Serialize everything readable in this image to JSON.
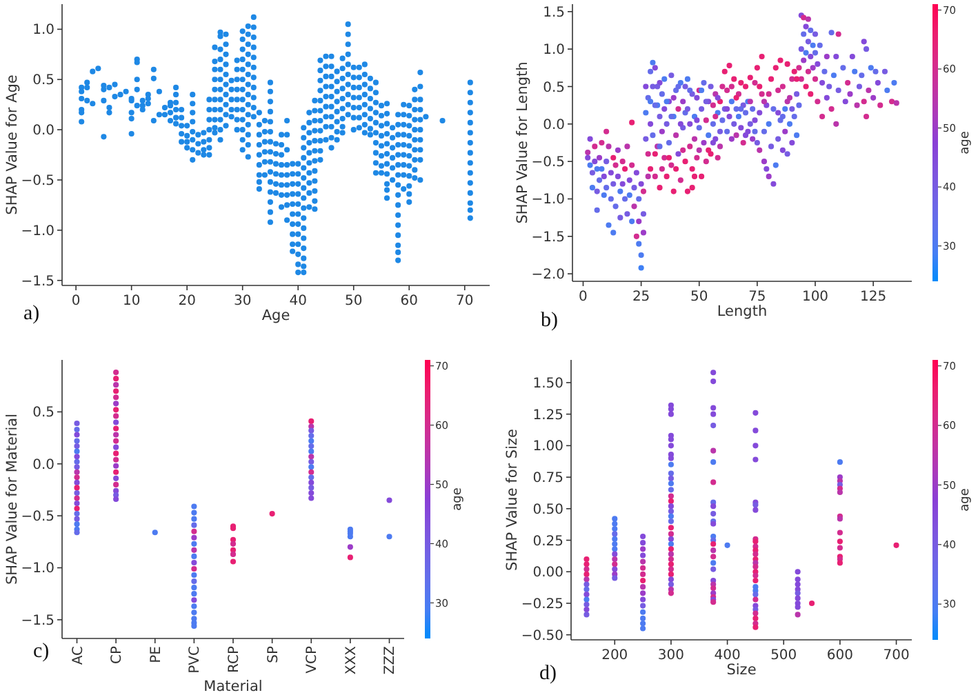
{
  "chart_data": [
    {
      "type": "scatter",
      "xlabel": "Age",
      "ylabel": "SHAP Value for Age",
      "annotations": [
        "a)"
      ],
      "marker": "circle",
      "color": "#1e88e5",
      "xlim": [
        -2.5,
        74.5
      ],
      "ylim": [
        -1.55,
        1.25
      ],
      "xticks": [
        0,
        10,
        20,
        30,
        40,
        50,
        60,
        70
      ],
      "yticks": [
        {
          "value": -1.5,
          "label": "−1.5"
        },
        {
          "value": -1,
          "label": "−1.0"
        },
        {
          "value": -0.5,
          "label": "−0.5"
        },
        {
          "value": 0,
          "label": "0.0"
        },
        {
          "value": 0.5,
          "label": "0.5"
        },
        {
          "value": 1,
          "label": "1.0"
        }
      ],
      "x": [
        1,
        1,
        1,
        1,
        1,
        1,
        2,
        2,
        2,
        3,
        3,
        4,
        5,
        5,
        5,
        5,
        6,
        6,
        6,
        7,
        7,
        8,
        9,
        10,
        10,
        10,
        10,
        10,
        11,
        11,
        11,
        11,
        11,
        12,
        12,
        12,
        13,
        13,
        13,
        14,
        14,
        14,
        15,
        15,
        16,
        16,
        17,
        17,
        17,
        17,
        18,
        18,
        18,
        18,
        18,
        18,
        19,
        19,
        19,
        19,
        19,
        20,
        20,
        20,
        20,
        21,
        21,
        21,
        21,
        21,
        21,
        21,
        21,
        22,
        22,
        22,
        23,
        23,
        23,
        23,
        24,
        24,
        24,
        24,
        24,
        24,
        24,
        25,
        25,
        25,
        25,
        25,
        25,
        25,
        25,
        25,
        25,
        26,
        26,
        26,
        26,
        26,
        26,
        26,
        26,
        26,
        26,
        26,
        26,
        27,
        27,
        27,
        27,
        27,
        27,
        27,
        27,
        27,
        27,
        28,
        28,
        28,
        28,
        28,
        29,
        29,
        29,
        29,
        29,
        29,
        29,
        29,
        30,
        30,
        30,
        30,
        30,
        30,
        30,
        30,
        30,
        30,
        30,
        30,
        30,
        31,
        31,
        31,
        31,
        31,
        31,
        31,
        31,
        31,
        31,
        31,
        31,
        31,
        31,
        32,
        32,
        32,
        32,
        32,
        32,
        32,
        32,
        32,
        32,
        32,
        33,
        33,
        33,
        33,
        33,
        33,
        33,
        33,
        33,
        34,
        34,
        34,
        34,
        34,
        34,
        35,
        35,
        35,
        35,
        35,
        35,
        35,
        35,
        35,
        35,
        35,
        35,
        35,
        35,
        35,
        36,
        36,
        36,
        36,
        36,
        36,
        37,
        37,
        37,
        37,
        37,
        37,
        37,
        37,
        38,
        38,
        38,
        38,
        38,
        38,
        38,
        38,
        38,
        39,
        39,
        39,
        39,
        39,
        39,
        39,
        39,
        39,
        39,
        40,
        40,
        40,
        40,
        40,
        40,
        40,
        40,
        40,
        40,
        40,
        40,
        41,
        41,
        41,
        41,
        41,
        41,
        41,
        41,
        41,
        41,
        41,
        41,
        41,
        41,
        41,
        41,
        42,
        42,
        42,
        42,
        42,
        42,
        42,
        42,
        42,
        42,
        43,
        43,
        43,
        43,
        43,
        43,
        43,
        43,
        43,
        43,
        43,
        43,
        44,
        44,
        44,
        44,
        44,
        44,
        44,
        44,
        44,
        44,
        44,
        45,
        45,
        45,
        45,
        45,
        45,
        45,
        45,
        45,
        46,
        46,
        46,
        46,
        46,
        46,
        46,
        46,
        46,
        46,
        47,
        47,
        47,
        47,
        47,
        47,
        47,
        47,
        48,
        48,
        48,
        48,
        48,
        48,
        48,
        48,
        48,
        49,
        49,
        49,
        49,
        49,
        49,
        49,
        49,
        49,
        49,
        50,
        50,
        50,
        50,
        50,
        50,
        50,
        51,
        51,
        51,
        51,
        51,
        51,
        51,
        52,
        52,
        52,
        52,
        52,
        52,
        52,
        52,
        53,
        53,
        53,
        53,
        53,
        53,
        53,
        54,
        54,
        54,
        54,
        54,
        54,
        54,
        54,
        54,
        54,
        55,
        55,
        55,
        55,
        55,
        55,
        55,
        55,
        56,
        56,
        56,
        56,
        56,
        56,
        56,
        56,
        56,
        56,
        56,
        57,
        57,
        57,
        57,
        57,
        57,
        58,
        58,
        58,
        58,
        58,
        58,
        58,
        58,
        58,
        58,
        58,
        58,
        58,
        58,
        58,
        58,
        59,
        59,
        59,
        59,
        59,
        59,
        59,
        59,
        59,
        60,
        60,
        60,
        60,
        60,
        60,
        60,
        60,
        60,
        60,
        60,
        61,
        61,
        61,
        61,
        61,
        61,
        61,
        61,
        61,
        61,
        62,
        62,
        62,
        62,
        62,
        62,
        62,
        62,
        62,
        62,
        63,
        66,
        71,
        71,
        71,
        71,
        71,
        71,
        71,
        71,
        71,
        71,
        71,
        71,
        71,
        71,
        71
      ],
      "values": [
        0.42,
        0.38,
        0.31,
        0.2,
        0.17,
        0.08,
        0.47,
        0.42,
        0.29,
        0.58,
        0.26,
        0.61,
        0.44,
        0.4,
        0.29,
        -0.07,
        0.42,
        0.22,
        0.17,
        0.45,
        0.33,
        0.35,
        0.38,
        0.31,
        0.29,
        0.17,
        0.11,
        -0.04,
        0.7,
        0.67,
        0.5,
        0.4,
        0.24,
        0.29,
        0.24,
        0.2,
        0.35,
        0.31,
        0.26,
        0.6,
        0.51,
        0.09,
        0.38,
        0.15,
        0.22,
        0.15,
        0.27,
        0.24,
        0.17,
        0.09,
        0.42,
        0.35,
        0.27,
        0.2,
        0.12,
        0.06,
        0.2,
        0.12,
        0.04,
        -0.04,
        -0.12,
        0.04,
        -0.06,
        -0.12,
        -0.18,
        0.35,
        0.26,
        0.17,
        0.08,
        -0.02,
        -0.1,
        -0.2,
        -0.3,
        -0.05,
        -0.14,
        -0.23,
        -0.03,
        -0.12,
        -0.2,
        -0.25,
        0.3,
        0.2,
        0.1,
        0,
        -0.1,
        -0.18,
        -0.25,
        0.82,
        0.68,
        0.6,
        0.5,
        0.4,
        0.3,
        0.2,
        0.1,
        0.02,
        -0.03,
        0.97,
        0.93,
        0.8,
        0.7,
        0.6,
        0.5,
        0.4,
        0.3,
        0.2,
        0.1,
        0,
        -0.1,
        0.95,
        0.85,
        0.75,
        0.65,
        0.55,
        0.45,
        0.35,
        0.25,
        0.15,
        0.04,
        0.49,
        0.4,
        0.3,
        0.2,
        0.13,
        0.69,
        0.6,
        0.5,
        0.4,
        0.3,
        0.2,
        0.1,
        0,
        0.98,
        0.9,
        0.8,
        0.7,
        0.6,
        0.5,
        0.4,
        0.3,
        0.2,
        0.1,
        0,
        -0.1,
        -0.2,
        1.03,
        0.95,
        0.85,
        0.75,
        0.65,
        0.55,
        0.45,
        0.35,
        0.25,
        0.15,
        0.05,
        -0.05,
        -0.15,
        -0.27,
        1.12,
        1.02,
        0.92,
        0.82,
        0.72,
        0.62,
        0.52,
        0.42,
        0.32,
        0.22,
        0.13,
        0.17,
        0.05,
        -0.05,
        -0.15,
        -0.25,
        -0.35,
        -0.45,
        -0.52,
        -0.59,
        0.09,
        -0.02,
        -0.12,
        -0.22,
        -0.32,
        -0.45,
        0.47,
        0.38,
        0.28,
        0.18,
        0.08,
        -0.02,
        -0.12,
        -0.22,
        -0.32,
        -0.42,
        -0.52,
        -0.62,
        -0.72,
        -0.82,
        -0.92,
        -0.14,
        -0.24,
        -0.34,
        -0.44,
        -0.54,
        -0.63,
        -0.05,
        -0.15,
        -0.25,
        -0.35,
        -0.45,
        -0.55,
        -0.65,
        -0.77,
        0.09,
        -0.05,
        -0.2,
        -0.35,
        -0.45,
        -0.55,
        -0.65,
        -0.75,
        -0.9,
        -0.34,
        -0.44,
        -0.54,
        -0.64,
        -0.74,
        -0.84,
        -0.94,
        -1.04,
        -1.14,
        -1.21,
        -0.34,
        -0.44,
        -0.54,
        -0.64,
        -0.74,
        -0.84,
        -0.94,
        -1.04,
        -1.14,
        -1.24,
        -1.34,
        -1.42,
        0.02,
        -0.08,
        -0.18,
        -0.28,
        -0.38,
        -0.48,
        -0.58,
        -0.68,
        -0.78,
        -0.88,
        -0.98,
        -1.08,
        -1.18,
        -1.28,
        -1.36,
        -1.42,
        0.17,
        0.07,
        -0.03,
        -0.13,
        -0.23,
        -0.33,
        -0.43,
        -0.53,
        -0.63,
        -0.77,
        0.29,
        0.19,
        0.09,
        -0.01,
        -0.11,
        -0.21,
        -0.31,
        -0.41,
        -0.51,
        -0.61,
        -0.71,
        -0.79,
        0.69,
        0.59,
        0.49,
        0.39,
        0.29,
        0.19,
        0.09,
        -0.01,
        -0.11,
        -0.21,
        -0.3,
        0.73,
        0.63,
        0.53,
        0.43,
        0.33,
        0.23,
        0.13,
        0.03,
        -0.1,
        0.73,
        0.63,
        0.53,
        0.43,
        0.33,
        0.23,
        0.13,
        0.03,
        -0.08,
        -0.18,
        0.58,
        0.48,
        0.38,
        0.28,
        0.18,
        0.08,
        -0.02,
        -0.1,
        0.71,
        0.61,
        0.51,
        0.41,
        0.31,
        0.21,
        0.11,
        0.03,
        -0.03,
        1.05,
        0.95,
        0.85,
        0.75,
        0.65,
        0.55,
        0.45,
        0.35,
        0.25,
        0.15,
        0.62,
        0.52,
        0.42,
        0.32,
        0.22,
        0.12,
        0,
        0.62,
        0.52,
        0.42,
        0.32,
        0.22,
        0.12,
        0.02,
        0.65,
        0.55,
        0.45,
        0.35,
        0.25,
        0.15,
        0.05,
        -0.03,
        0.51,
        0.41,
        0.31,
        0.21,
        0.11,
        0.01,
        -0.05,
        0.47,
        0.37,
        0.27,
        0.17,
        0.07,
        -0.03,
        -0.13,
        -0.23,
        -0.33,
        -0.43,
        0.24,
        0.14,
        0.04,
        -0.06,
        -0.16,
        -0.26,
        -0.36,
        -0.43,
        0.26,
        0.16,
        0.06,
        -0.04,
        -0.14,
        -0.24,
        -0.34,
        -0.44,
        -0.54,
        -0.6,
        -0.68,
        0.02,
        -0.08,
        -0.18,
        -0.28,
        -0.38,
        -0.5,
        0.15,
        0.05,
        -0.05,
        -0.15,
        -0.25,
        -0.35,
        -0.45,
        -0.55,
        -0.65,
        -0.75,
        -0.85,
        -0.95,
        -1.05,
        -1.15,
        -1.22,
        -1.3,
        0.25,
        0.15,
        0.05,
        -0.05,
        -0.15,
        -0.25,
        -0.35,
        -0.45,
        -0.59,
        0.24,
        0.14,
        0.04,
        -0.06,
        -0.16,
        -0.26,
        -0.36,
        -0.46,
        -0.56,
        -0.64,
        -0.72,
        0.4,
        0.3,
        0.2,
        0.1,
        0,
        -0.1,
        -0.2,
        -0.3,
        -0.4,
        -0.48,
        0.57,
        0.43,
        0.3,
        0.2,
        0.1,
        0,
        -0.1,
        -0.2,
        -0.3,
        -0.5,
        0.13,
        0.09,
        0.47,
        0.37,
        0.27,
        0.17,
        0.07,
        -0.03,
        -0.13,
        -0.23,
        -0.33,
        -0.43,
        -0.53,
        -0.63,
        -0.73,
        -0.8,
        -0.88
      ]
    },
    {
      "type": "scatter",
      "xlabel": "Length",
      "ylabel": "SHAP Value for Length",
      "clabel": "age",
      "annotations": [
        "b)"
      ],
      "marker": "circle",
      "xlim": [
        -4.6,
        141.6
      ],
      "ylim": [
        -2.1,
        1.6
      ],
      "xticks": [
        0,
        25,
        50,
        75,
        100,
        125
      ],
      "yticks": [
        {
          "value": -2,
          "label": "−2.0"
        },
        {
          "value": -1.5,
          "label": "−1.5"
        },
        {
          "value": -1,
          "label": "−1.0"
        },
        {
          "value": -0.5,
          "label": "−0.5"
        },
        {
          "value": 0,
          "label": "0.0"
        },
        {
          "value": 0.5,
          "label": "0.5"
        },
        {
          "value": 1,
          "label": "1.0"
        },
        {
          "value": 1.5,
          "label": "1.5"
        }
      ],
      "clim": [
        24,
        71
      ],
      "cticks": [
        30,
        40,
        50,
        60,
        70
      ],
      "x": [
        2,
        2,
        3,
        3,
        4,
        4,
        5,
        5,
        6,
        6,
        6,
        7,
        7,
        8,
        8,
        9,
        9,
        10,
        10,
        10,
        11,
        11,
        12,
        12,
        13,
        13,
        13,
        14,
        14,
        15,
        15,
        16,
        16,
        17,
        17,
        18,
        18,
        19,
        19,
        20,
        20,
        21,
        21,
        21,
        22,
        22,
        23,
        23,
        24,
        24,
        24,
        25,
        25,
        25,
        26,
        26,
        26,
        27,
        27,
        28,
        28,
        29,
        29,
        30,
        30,
        31,
        31,
        32,
        32,
        33,
        33,
        34,
        34,
        35,
        35,
        36,
        36,
        37,
        37,
        38,
        38,
        39,
        39,
        40,
        40,
        41,
        41,
        42,
        42,
        43,
        43,
        44,
        44,
        45,
        45,
        46,
        46,
        47,
        47,
        48,
        48,
        49,
        49,
        50,
        50,
        51,
        51,
        52,
        52,
        53,
        53,
        54,
        54,
        55,
        55,
        56,
        56,
        57,
        57,
        58,
        58,
        59,
        59,
        60,
        60,
        30,
        31,
        29,
        33,
        36,
        44,
        28,
        47,
        61,
        61,
        62,
        62,
        63,
        63,
        64,
        64,
        65,
        65,
        66,
        66,
        67,
        67,
        68,
        68,
        69,
        69,
        70,
        70,
        71,
        71,
        72,
        72,
        73,
        73,
        74,
        74,
        75,
        75,
        76,
        76,
        77,
        77,
        78,
        78,
        79,
        79,
        80,
        80,
        81,
        81,
        82,
        82,
        83,
        83,
        84,
        84,
        85,
        85,
        86,
        86,
        87,
        87,
        88,
        88,
        89,
        89,
        90,
        90,
        91,
        91,
        92,
        92,
        93,
        93,
        94,
        94,
        94,
        95,
        95,
        95,
        96,
        96,
        96,
        97,
        97,
        97,
        98,
        98,
        98,
        99,
        99,
        100,
        100,
        100,
        101,
        101,
        102,
        103,
        103,
        104,
        105,
        105,
        106,
        107,
        107,
        108,
        109,
        109,
        110,
        110,
        112,
        113,
        114,
        115,
        116,
        117,
        118,
        119,
        120,
        121,
        121,
        122,
        122,
        123,
        124,
        125,
        126,
        127,
        128,
        130,
        131,
        133,
        134,
        135,
        27,
        29,
        31,
        32,
        33,
        34,
        35,
        37,
        38,
        39,
        40,
        41,
        42,
        43,
        45,
        46,
        48,
        49,
        50,
        51,
        53,
        54,
        56,
        57,
        58,
        59,
        62,
        64,
        66,
        68,
        70,
        72,
        74,
        76,
        78,
        80,
        84,
        86,
        88,
        90,
        92
      ],
      "values": [
        -0.38,
        -0.45,
        -0.2,
        -0.55,
        -0.85,
        -0.65,
        -0.3,
        -0.5,
        -0.6,
        -0.9,
        -1.15,
        -0.75,
        -0.45,
        -0.25,
        -0.6,
        -0.7,
        -0.95,
        -0.1,
        -0.5,
        -0.85,
        -1.35,
        -0.3,
        -0.65,
        -1,
        -0.45,
        -0.8,
        -1.45,
        -0.55,
        -1.1,
        -0.7,
        -0.35,
        -0.9,
        -1.25,
        -0.5,
        -0.8,
        -1,
        -0.6,
        -0.3,
        -1.2,
        -0.75,
        -0.95,
        0.02,
        -0.55,
        -1.3,
        -0.85,
        -1.1,
        -0.65,
        -1.5,
        -1,
        -1.6,
        -1.3,
        -1.75,
        -1.92,
        -0.8,
        -1.2,
        -0.9,
        -1.45,
        0.15,
        -0.2,
        0.35,
        -0.4,
        0,
        -0.6,
        0.82,
        -0.15,
        0.75,
        -0.7,
        0.25,
        -0.3,
        0.1,
        -0.85,
        0.4,
        -0.1,
        -0.45,
        0.6,
        0,
        -0.7,
        0.3,
        -0.25,
        0.65,
        -0.55,
        0.1,
        -0.9,
        0.45,
        -0.15,
        -0.4,
        0.2,
        0.55,
        -0.75,
        -0.05,
        0.3,
        -0.5,
        0.15,
        0.6,
        -0.9,
        0,
        -0.3,
        0.4,
        -0.6,
        0.1,
        -0.2,
        0.35,
        -0.45,
        -0.05,
        0.45,
        0.2,
        -0.7,
        -0.25,
        0.55,
        0.05,
        -0.5,
        0.3,
        -0.15,
        0.5,
        -0.4,
        0,
        0.25,
        -0.2,
        0.4,
        0.15,
        -0.45,
        -0.1,
        0.3,
        0.5,
        0.05,
        0.5,
        0.25,
        0.7,
        0.55,
        0.3,
        0.5,
        -0.7,
        -0.85,
        0.7,
        0.2,
        -0.1,
        0.45,
        0.78,
        0.1,
        0.3,
        -0.2,
        0.6,
        0,
        0.2,
        -0.15,
        0.4,
        0.1,
        -0.05,
        0.55,
        0.25,
        -0.25,
        0.15,
        0.5,
        -0.1,
        0.3,
        0.62,
        0,
        -0.2,
        0.2,
        0.55,
        0.05,
        0.75,
        -0.25,
        0.15,
        -0.35,
        0.9,
        0.4,
        -0.1,
        -0.5,
        0.25,
        -0.6,
        0,
        -0.7,
        0.6,
        -0.3,
        -0.8,
        0.2,
        -0.55,
        0.75,
        0.45,
        -0.2,
        0.05,
        0.85,
        -0.35,
        0.5,
        0.2,
        -0.1,
        0.8,
        -0.4,
        0.35,
        0,
        0.6,
        -0.25,
        0.1,
        0.7,
        0.4,
        -0.15,
        0.75,
        0.25,
        1.45,
        1,
        0.6,
        1.42,
        1.2,
        0.85,
        1.3,
        0.5,
        0.95,
        1.4,
        1.1,
        0.7,
        1.25,
        0.9,
        0.4,
        1.05,
        0.75,
        1.2,
        0.6,
        0.95,
        0.3,
        0.8,
        1.05,
        0.55,
        0.1,
        0.7,
        0.35,
        0.9,
        0.5,
        1.22,
        0.2,
        0.65,
        0,
        0.9,
        1.2,
        0.45,
        0.75,
        0.3,
        0.55,
        0.4,
        0.9,
        0.7,
        0.25,
        0.5,
        0.65,
        1.1,
        0.3,
        1,
        0.1,
        0.45,
        0.75,
        0.35,
        0.7,
        0.55,
        0.25,
        0.7,
        0.45,
        0.3,
        0.55,
        0.28,
        0.5,
        0.3,
        -0.4,
        0.5,
        -0.3,
        -0.6,
        0.2,
        -0.45,
        0.1,
        0.35,
        -0.6,
        0.5,
        0,
        -0.35,
        0.2,
        0.45,
        -0.7,
        0.05,
        -0.35,
        0.45,
        0.3,
        -0.35,
        -0.25,
        0.1,
        0.35,
        -0.3,
        0.2,
        0.5,
        0.35,
        0.2,
        -0.15,
        0.3,
        -0.1,
        0.5,
        0.3,
        0.4,
        0.15,
        0.1,
        0.3,
        0.2,
        0.6
      ],
      "cvalues": [
        55,
        45,
        45,
        30,
        30,
        40,
        60,
        45,
        30,
        40,
        35,
        35,
        50,
        60,
        30,
        45,
        30,
        60,
        40,
        35,
        30,
        55,
        45,
        35,
        65,
        40,
        30,
        60,
        35,
        45,
        50,
        30,
        40,
        60,
        45,
        35,
        65,
        55,
        40,
        45,
        30,
        65,
        60,
        30,
        40,
        55,
        45,
        60,
        35,
        30,
        50,
        30,
        28,
        45,
        40,
        60,
        50,
        30,
        40,
        35,
        60,
        45,
        65,
        30,
        35,
        45,
        60,
        30,
        55,
        40,
        65,
        35,
        50,
        60,
        30,
        40,
        65,
        45,
        35,
        40,
        60,
        30,
        65,
        35,
        55,
        45,
        60,
        30,
        60,
        40,
        50,
        65,
        35,
        30,
        65,
        45,
        60,
        40,
        65,
        30,
        55,
        45,
        60,
        35,
        60,
        40,
        65,
        50,
        35,
        60,
        60,
        45,
        30,
        40,
        65,
        35,
        60,
        45,
        55,
        30,
        60,
        40,
        65,
        60,
        35,
        40,
        35,
        35,
        45,
        30,
        40,
        55,
        65,
        65,
        40,
        35,
        60,
        65,
        45,
        30,
        50,
        65,
        40,
        35,
        55,
        60,
        30,
        45,
        65,
        40,
        60,
        35,
        65,
        45,
        30,
        65,
        40,
        50,
        35,
        60,
        45,
        65,
        40,
        45,
        55,
        65,
        60,
        35,
        50,
        45,
        45,
        30,
        50,
        65,
        40,
        45,
        35,
        30,
        65,
        60,
        40,
        35,
        65,
        45,
        60,
        30,
        50,
        65,
        40,
        55,
        30,
        60,
        45,
        35,
        65,
        40,
        30,
        60,
        35,
        45,
        40,
        60,
        60,
        35,
        50,
        45,
        65,
        30,
        55,
        40,
        60,
        35,
        45,
        65,
        30,
        50,
        40,
        60,
        35,
        60,
        45,
        35,
        45,
        60,
        35,
        45,
        50,
        40,
        35,
        60,
        30,
        55,
        45,
        60,
        40,
        35,
        45,
        60,
        50,
        45,
        30,
        55,
        40,
        35,
        45,
        60,
        40,
        60,
        55,
        30,
        50,
        35,
        45,
        60,
        40,
        30,
        60,
        30,
        55,
        45,
        30,
        65,
        40,
        35,
        60,
        45,
        65,
        35,
        50,
        65,
        35,
        45,
        60,
        40,
        35,
        65,
        45,
        55,
        30,
        40,
        65,
        45,
        60,
        45,
        55,
        45,
        60,
        65,
        35,
        45,
        55,
        35,
        65,
        55,
        60,
        45,
        35,
        55,
        40,
        65
      ]
    },
    {
      "type": "scatter",
      "xlabel": "Material",
      "ylabel": "SHAP Value for Material",
      "clabel": "age",
      "annotations": [
        "c)"
      ],
      "marker": "circle",
      "categories": [
        "AC",
        "CP",
        "PE",
        "PVC",
        "RCP",
        "SP",
        "VCP",
        "XXX",
        "ZZZ"
      ],
      "ylim": [
        -1.68,
        1.0
      ],
      "yticks": [
        {
          "value": -1.5,
          "label": "−1.5"
        },
        {
          "value": -1,
          "label": "−1.0"
        },
        {
          "value": -0.5,
          "label": "−0.5"
        },
        {
          "value": 0,
          "label": "0.0"
        },
        {
          "value": 0.5,
          "label": "0.5"
        }
      ],
      "clim": [
        24,
        71
      ],
      "cticks": [
        30,
        40,
        50,
        60,
        70
      ],
      "series": [
        {
          "x": [
            "AC",
            "AC",
            "AC",
            "AC",
            "AC",
            "AC",
            "AC",
            "AC",
            "AC",
            "AC",
            "AC",
            "AC",
            "AC",
            "AC",
            "AC",
            "AC",
            "AC",
            "AC",
            "AC",
            "AC",
            "AC",
            "AC",
            "CP",
            "CP",
            "CP",
            "CP",
            "CP",
            "CP",
            "CP",
            "CP",
            "CP",
            "CP",
            "CP",
            "CP",
            "CP",
            "CP",
            "CP",
            "CP",
            "CP",
            "CP",
            "CP",
            "CP",
            "CP",
            "CP",
            "PE",
            "PVC",
            "PVC",
            "PVC",
            "PVC",
            "PVC",
            "PVC",
            "PVC",
            "PVC",
            "PVC",
            "PVC",
            "PVC",
            "PVC",
            "PVC",
            "PVC",
            "PVC",
            "PVC",
            "PVC",
            "PVC",
            "PVC",
            "PVC",
            "PVC",
            "RCP",
            "RCP",
            "RCP",
            "RCP",
            "RCP",
            "RCP",
            "RCP",
            "SP",
            "VCP",
            "VCP",
            "VCP",
            "VCP",
            "VCP",
            "VCP",
            "VCP",
            "VCP",
            "VCP",
            "VCP",
            "VCP",
            "VCP",
            "VCP",
            "VCP",
            "VCP",
            "VCP",
            "XXX",
            "XXX",
            "XXX",
            "XXX",
            "XXX",
            "XXX",
            "ZZZ",
            "ZZZ"
          ],
          "values": [
            0.39,
            0.33,
            0.28,
            0.22,
            0.17,
            0.12,
            0.07,
            0.02,
            -0.03,
            -0.08,
            -0.13,
            -0.18,
            -0.23,
            -0.28,
            -0.33,
            -0.38,
            -0.43,
            -0.48,
            -0.53,
            -0.58,
            -0.63,
            -0.66,
            0.88,
            0.82,
            0.76,
            0.7,
            0.64,
            0.58,
            0.52,
            0.46,
            0.4,
            0.34,
            0.28,
            0.22,
            0.16,
            0.1,
            0.04,
            -0.02,
            -0.08,
            -0.14,
            -0.2,
            -0.26,
            -0.3,
            -0.34,
            -0.66,
            -0.41,
            -0.47,
            -0.53,
            -0.59,
            -0.65,
            -0.71,
            -0.77,
            -0.83,
            -0.89,
            -0.95,
            -1.01,
            -1.07,
            -1.13,
            -1.19,
            -1.25,
            -1.31,
            -1.37,
            -1.43,
            -1.49,
            -1.53,
            -1.56,
            -0.6,
            -0.62,
            -0.73,
            -0.77,
            -0.83,
            -0.87,
            -0.94,
            -0.48,
            0.41,
            0.36,
            0.32,
            0.27,
            0.22,
            0.17,
            0.12,
            0.07,
            0.02,
            -0.03,
            -0.08,
            -0.13,
            -0.18,
            -0.23,
            -0.28,
            -0.33,
            -0.63,
            -0.65,
            -0.67,
            -0.7,
            -0.8,
            -0.9,
            -0.35,
            -0.7
          ],
          "cvalues": [
            40,
            35,
            45,
            35,
            40,
            30,
            45,
            35,
            40,
            55,
            60,
            45,
            65,
            40,
            60,
            45,
            65,
            35,
            40,
            30,
            30,
            35,
            60,
            65,
            55,
            65,
            60,
            50,
            65,
            60,
            45,
            65,
            55,
            60,
            45,
            65,
            60,
            50,
            65,
            45,
            60,
            45,
            40,
            45,
            30,
            30,
            30,
            30,
            35,
            60,
            50,
            30,
            55,
            30,
            45,
            60,
            30,
            35,
            30,
            30,
            45,
            30,
            30,
            30,
            30,
            30,
            65,
            65,
            65,
            60,
            65,
            60,
            65,
            65,
            65,
            55,
            40,
            35,
            30,
            35,
            30,
            55,
            40,
            30,
            60,
            35,
            45,
            40,
            45,
            45,
            30,
            30,
            30,
            30,
            50,
            65,
            45,
            30
          ]
        }
      ]
    },
    {
      "type": "scatter",
      "xlabel": "Size",
      "ylabel": "SHAP Value for Size",
      "clabel": "age",
      "annotations": [
        "d)"
      ],
      "marker": "circle",
      "xlim": [
        122.5,
        727.5
      ],
      "ylim": [
        -0.54,
        1.68
      ],
      "xticks": [
        200,
        300,
        400,
        500,
        600,
        700
      ],
      "yticks": [
        {
          "value": -0.5,
          "label": "−0.50"
        },
        {
          "value": -0.25,
          "label": "−0.25"
        },
        {
          "value": 0,
          "label": "0.00"
        },
        {
          "value": 0.25,
          "label": "0.25"
        },
        {
          "value": 0.5,
          "label": "0.50"
        },
        {
          "value": 0.75,
          "label": "0.75"
        },
        {
          "value": 1,
          "label": "1.00"
        },
        {
          "value": 1.25,
          "label": "1.25"
        },
        {
          "value": 1.5,
          "label": "1.50"
        }
      ],
      "clim": [
        24,
        71
      ],
      "cticks": [
        30,
        40,
        50,
        60,
        70
      ],
      "x": [
        150,
        150,
        150,
        150,
        150,
        150,
        150,
        150,
        150,
        150,
        150,
        150,
        200,
        200,
        200,
        200,
        200,
        200,
        200,
        200,
        200,
        200,
        200,
        200,
        200,
        250,
        250,
        250,
        250,
        250,
        250,
        250,
        250,
        250,
        250,
        250,
        250,
        250,
        250,
        250,
        250,
        300,
        300,
        300,
        300,
        300,
        300,
        300,
        300,
        300,
        300,
        300,
        300,
        300,
        300,
        300,
        300,
        300,
        300,
        300,
        300,
        300,
        300,
        300,
        300,
        300,
        300,
        300,
        300,
        300,
        300,
        300,
        300,
        300,
        375,
        375,
        375,
        375,
        375,
        375,
        375,
        375,
        375,
        375,
        375,
        375,
        375,
        375,
        375,
        375,
        375,
        375,
        375,
        375,
        375,
        375,
        375,
        375,
        375,
        375,
        375,
        400,
        450,
        450,
        450,
        450,
        450,
        450,
        450,
        450,
        450,
        450,
        450,
        450,
        450,
        450,
        450,
        450,
        450,
        450,
        450,
        450,
        450,
        450,
        450,
        450,
        450,
        450,
        450,
        450,
        525,
        525,
        525,
        525,
        525,
        525,
        525,
        525,
        525,
        550,
        600,
        600,
        600,
        600,
        600,
        600,
        600,
        600,
        600,
        600,
        600,
        600,
        600,
        600,
        700
      ],
      "values": [
        0.1,
        0.06,
        0.02,
        -0.02,
        -0.06,
        -0.1,
        -0.14,
        -0.18,
        -0.22,
        -0.26,
        -0.3,
        -0.34,
        0.42,
        0.38,
        0.34,
        0.3,
        0.26,
        0.22,
        0.18,
        0.14,
        0.1,
        0.06,
        0.02,
        -0.02,
        -0.05,
        0.28,
        0.23,
        0.18,
        0.13,
        0.08,
        0.03,
        -0.02,
        -0.07,
        -0.12,
        -0.17,
        -0.22,
        -0.27,
        -0.32,
        -0.37,
        -0.41,
        -0.45,
        1.32,
        1.29,
        1.25,
        1.08,
        1.05,
        1,
        0.93,
        0.9,
        0.85,
        0.78,
        0.74,
        0.7,
        0.65,
        0.6,
        0.56,
        0.52,
        0.48,
        0.44,
        0.4,
        0.35,
        0.3,
        0.26,
        0.22,
        0.18,
        0.14,
        0.1,
        0.06,
        0.02,
        -0.02,
        -0.06,
        -0.1,
        -0.14,
        -0.17,
        1.58,
        1.51,
        1.3,
        1.25,
        1.16,
        0.96,
        0.87,
        0.71,
        0.55,
        0.52,
        0.46,
        0.4,
        0.38,
        0.28,
        0.25,
        0.22,
        0.17,
        0.12,
        0.07,
        0.02,
        -0.07,
        -0.1,
        -0.13,
        -0.17,
        -0.2,
        -0.22,
        -0.24,
        0.21,
        1.26,
        1.12,
        1,
        0.89,
        0.55,
        0.53,
        0.49,
        0.26,
        0.24,
        0.2,
        0.17,
        0.14,
        0.1,
        0.07,
        0.04,
        0,
        -0.03,
        -0.07,
        -0.12,
        -0.15,
        -0.18,
        -0.22,
        -0.27,
        -0.3,
        -0.33,
        -0.37,
        -0.41,
        -0.44,
        0,
        -0.06,
        -0.1,
        -0.14,
        -0.17,
        -0.21,
        -0.25,
        -0.28,
        -0.34,
        -0.25,
        0.87,
        0.75,
        0.72,
        0.69,
        0.66,
        0.63,
        0.44,
        0.42,
        0.31,
        0.24,
        0.19,
        0.12,
        0.1,
        0.07,
        0.21
      ],
      "cvalues": [
        65,
        65,
        60,
        65,
        55,
        40,
        35,
        45,
        30,
        40,
        45,
        40,
        30,
        30,
        30,
        35,
        30,
        30,
        30,
        45,
        55,
        60,
        45,
        50,
        40,
        45,
        45,
        50,
        45,
        55,
        60,
        60,
        65,
        55,
        50,
        45,
        40,
        30,
        30,
        30,
        30,
        45,
        45,
        45,
        45,
        45,
        45,
        45,
        45,
        30,
        35,
        40,
        30,
        35,
        60,
        65,
        45,
        40,
        30,
        35,
        65,
        60,
        45,
        30,
        65,
        55,
        60,
        65,
        60,
        65,
        45,
        40,
        55,
        60,
        45,
        45,
        45,
        45,
        40,
        55,
        30,
        60,
        35,
        45,
        40,
        35,
        45,
        30,
        35,
        65,
        55,
        60,
        30,
        40,
        45,
        55,
        60,
        50,
        60,
        45,
        60,
        30,
        45,
        45,
        45,
        45,
        45,
        40,
        45,
        60,
        65,
        60,
        65,
        60,
        65,
        55,
        60,
        65,
        60,
        65,
        30,
        30,
        35,
        60,
        45,
        40,
        60,
        65,
        60,
        65,
        45,
        45,
        45,
        45,
        40,
        45,
        45,
        45,
        55,
        65,
        30,
        50,
        55,
        40,
        60,
        55,
        60,
        55,
        60,
        65,
        60,
        65,
        60,
        65,
        65
      ]
    }
  ]
}
